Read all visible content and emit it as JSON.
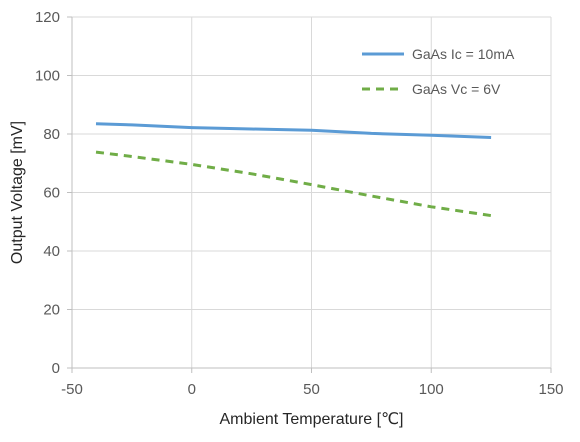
{
  "chart_data": {
    "type": "line",
    "xlabel": "Ambient Temperature [℃]",
    "ylabel": "Output Voltage [mV]",
    "xlim": [
      -50,
      150
    ],
    "ylim": [
      0,
      120
    ],
    "xticks": [
      -50,
      0,
      50,
      100,
      150
    ],
    "yticks": [
      0,
      20,
      40,
      60,
      80,
      100,
      120
    ],
    "grid": true,
    "legend_position": "top-right",
    "series": [
      {
        "name": "GaAs Ic = 10mA",
        "color": "#5b9bd5",
        "style": "solid",
        "x": [
          -40,
          -25,
          0,
          25,
          50,
          75,
          100,
          125
        ],
        "y": [
          83.5,
          83.1,
          82.2,
          81.7,
          81.3,
          80.2,
          79.6,
          78.8
        ]
      },
      {
        "name": "GaAs Vc = 6V",
        "color": "#70ad47",
        "style": "dashed",
        "x": [
          -40,
          -25,
          0,
          25,
          50,
          75,
          100,
          125
        ],
        "y": [
          73.8,
          72.3,
          69.6,
          66.4,
          62.7,
          58.8,
          55.1,
          52.1
        ]
      }
    ]
  }
}
